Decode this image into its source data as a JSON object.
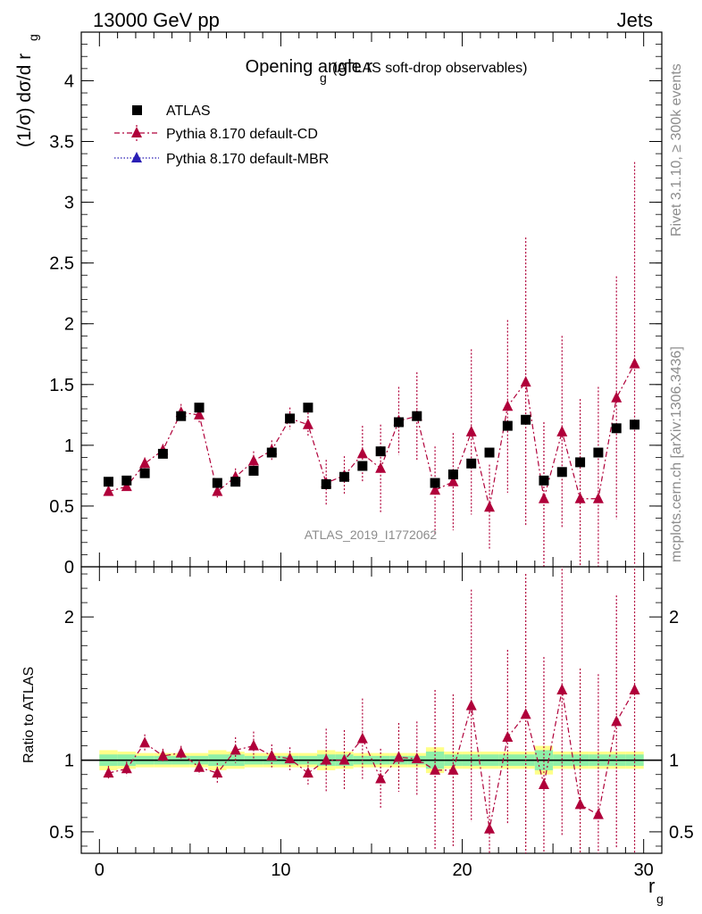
{
  "header": {
    "left": "13000 GeV pp",
    "right": "Jets"
  },
  "side_labels": {
    "rivet": "Rivet 3.1.10, ≥ 300k events",
    "mcplots": "mcplots.cern.ch [arXiv:1306.3436]"
  },
  "colors": {
    "data": "#000000",
    "mc": "#b0003a",
    "mbr": "#2a1fb5",
    "band_inner": "#8ff0a8",
    "band_outer": "#ffff88"
  },
  "chart_data": {
    "type": "scatter",
    "title": "Opening angle r",
    "title_sub": "g",
    "title_suffix": "(ATLAS soft-drop observables)",
    "watermark": "ATLAS_2019_I1772062",
    "xlabel": "r",
    "xlabel_sub": "g",
    "ylabel": "(1/σ) dσ/d r",
    "ylabel_sub": "g",
    "ratio_ylabel": "Ratio to ATLAS",
    "xlim": [
      -1,
      31
    ],
    "ylim": [
      0,
      4.4
    ],
    "ratio_ylim": [
      0.35,
      2.35
    ],
    "xticks": [
      "0",
      "10",
      "20",
      "30"
    ],
    "yticks": [
      "0",
      "0.5",
      "1",
      "1.5",
      "2",
      "2.5",
      "3",
      "3.5",
      "4"
    ],
    "ratio_yticks": [
      "0.5",
      "1",
      "2"
    ],
    "legend": [
      "ATLAS",
      "Pythia 8.170 default-CD",
      "Pythia 8.170 default-MBR"
    ],
    "x": [
      0.5,
      1.5,
      2.5,
      3.5,
      4.5,
      5.5,
      6.5,
      7.5,
      8.5,
      9.5,
      10.5,
      11.5,
      12.5,
      13.5,
      14.5,
      15.5,
      16.5,
      17.5,
      18.5,
      19.5,
      20.5,
      21.5,
      22.5,
      23.5,
      24.5,
      25.5,
      26.5,
      27.5,
      28.5,
      29.5
    ],
    "series": [
      {
        "name": "ATLAS",
        "values": [
          0.7,
          0.71,
          0.77,
          0.93,
          1.24,
          1.31,
          0.69,
          0.7,
          0.79,
          0.94,
          1.22,
          1.31,
          0.68,
          0.74,
          0.83,
          0.95,
          1.19,
          1.24,
          0.69,
          0.76,
          0.85,
          0.94,
          1.16,
          1.21,
          0.71,
          0.78,
          0.86,
          0.94,
          1.14,
          1.17
        ],
        "band_inner": [
          0.04,
          0.04,
          0.03,
          0.03,
          0.03,
          0.03,
          0.04,
          0.04,
          0.03,
          0.03,
          0.03,
          0.03,
          0.04,
          0.04,
          0.03,
          0.03,
          0.03,
          0.03,
          0.06,
          0.04,
          0.04,
          0.04,
          0.04,
          0.04,
          0.07,
          0.04,
          0.04,
          0.04,
          0.04,
          0.04
        ],
        "band_outer": [
          0.07,
          0.06,
          0.05,
          0.05,
          0.05,
          0.05,
          0.07,
          0.06,
          0.05,
          0.05,
          0.05,
          0.05,
          0.07,
          0.06,
          0.05,
          0.05,
          0.05,
          0.05,
          0.09,
          0.06,
          0.06,
          0.06,
          0.06,
          0.06,
          0.1,
          0.06,
          0.06,
          0.06,
          0.06,
          0.06
        ]
      },
      {
        "name": "Pythia 8.170 default-CD",
        "values": [
          0.62,
          0.66,
          0.85,
          0.96,
          1.27,
          1.25,
          0.62,
          0.74,
          0.87,
          0.96,
          1.22,
          1.17,
          0.69,
          0.75,
          0.93,
          0.81,
          1.2,
          1.24,
          0.63,
          0.7,
          1.11,
          0.49,
          1.32,
          1.52,
          0.56,
          1.11,
          0.56,
          0.56,
          1.39,
          1.67
        ],
        "errors": [
          0.04,
          0.04,
          0.05,
          0.05,
          0.07,
          0.07,
          0.05,
          0.07,
          0.08,
          0.08,
          0.09,
          0.1,
          0.19,
          0.16,
          0.23,
          0.36,
          0.28,
          0.36,
          0.36,
          0.4,
          0.68,
          0.35,
          0.71,
          1.19,
          0.63,
          0.79,
          0.82,
          0.92,
          1.0,
          1.66
        ],
        "ratio": [
          0.91,
          0.94,
          1.12,
          1.03,
          1.05,
          0.95,
          0.91,
          1.07,
          1.1,
          1.03,
          1.01,
          0.91,
          1.0,
          1.0,
          1.15,
          0.87,
          1.02,
          1.01,
          0.93,
          0.93,
          1.38,
          0.52,
          1.16,
          1.32,
          0.83,
          1.49,
          0.69,
          0.62,
          1.27,
          1.49
        ],
        "ratio_errors": [
          0.05,
          0.05,
          0.06,
          0.05,
          0.05,
          0.05,
          0.07,
          0.09,
          0.1,
          0.08,
          0.08,
          0.08,
          0.22,
          0.21,
          0.28,
          0.21,
          0.24,
          0.26,
          0.56,
          0.53,
          0.81,
          0.37,
          0.61,
          0.98,
          0.89,
          1.02,
          0.95,
          0.98,
          0.88,
          1.42
        ]
      },
      {
        "name": "Pythia 8.170 default-MBR",
        "values": []
      }
    ]
  }
}
